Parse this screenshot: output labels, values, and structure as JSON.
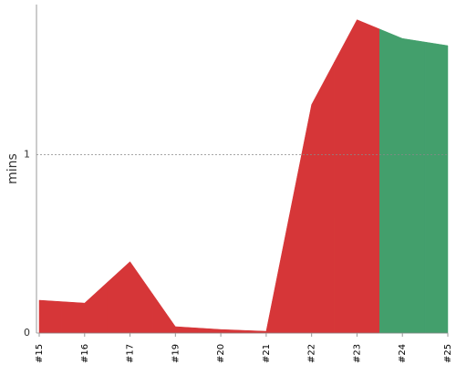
{
  "chart_data": {
    "type": "area",
    "ylabel": "mins",
    "categories": [
      "#15",
      "#16",
      "#17",
      "#19",
      "#20",
      "#21",
      "#22",
      "#23",
      "#24",
      "#25"
    ],
    "values": [
      0.184,
      0.168,
      0.4,
      0.036,
      0.02,
      0.01,
      1.28,
      1.755,
      1.65,
      1.61
    ],
    "colors": [
      "#d63638",
      "#d63638",
      "#d63638",
      "#d63638",
      "#d63638",
      "#d63638",
      "#d63638",
      "#d63638",
      "#439f6c",
      "#439f6c"
    ],
    "ylim": [
      0,
      1.84
    ],
    "yticks": [
      0,
      1
    ],
    "grid": true
  }
}
